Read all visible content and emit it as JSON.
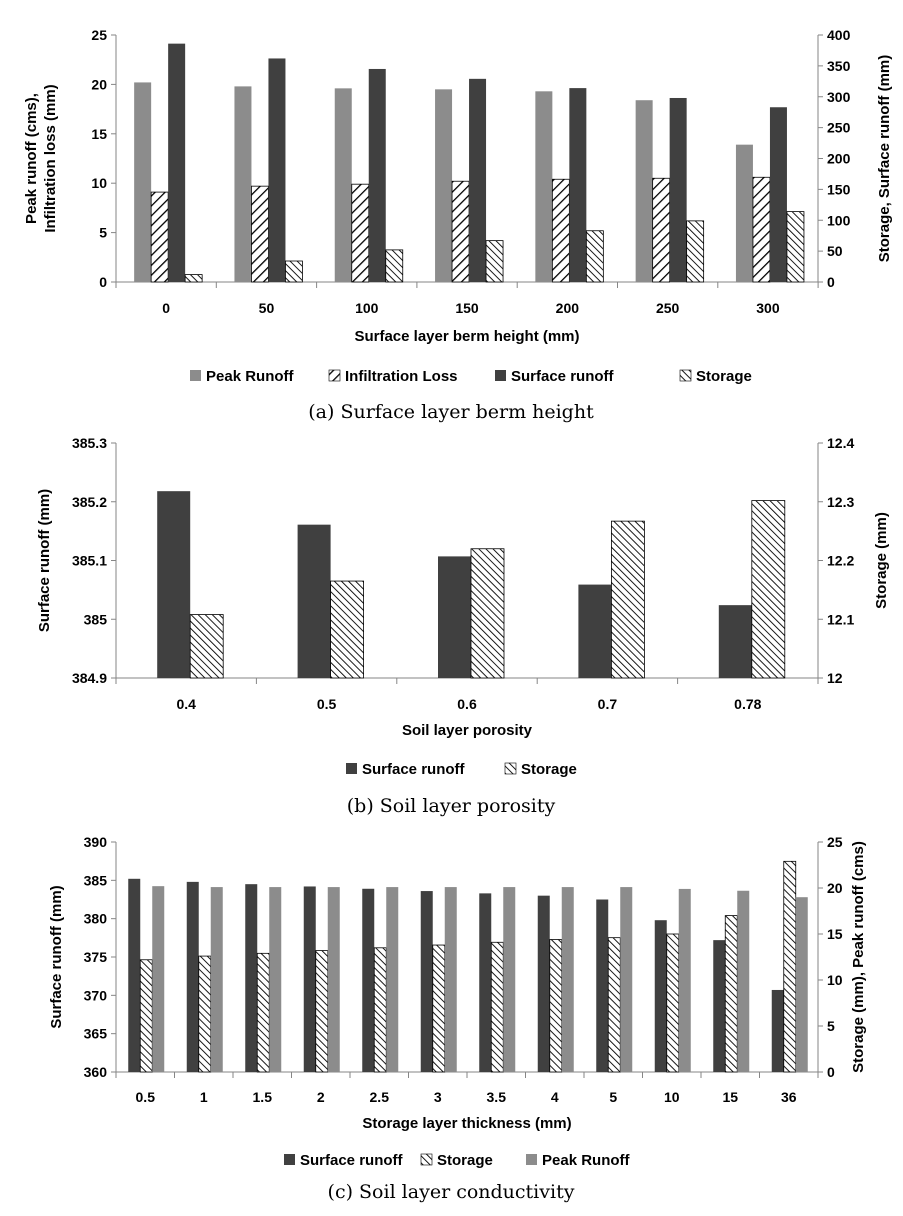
{
  "colors": {
    "peak": "#8c8c8c",
    "surface": "#404040",
    "hatch": "#000000",
    "axis": "#868686"
  },
  "chart_data": [
    {
      "type": "bar",
      "caption": "(a) Surface layer berm height",
      "xlabel": "Surface layer berm height (mm)",
      "ylabel_left": "Peak runoff (cms),\nInfiltration loss (mm)",
      "ylabel_right": "Storage, Surface runoff (mm)",
      "categories": [
        "0",
        "50",
        "100",
        "150",
        "200",
        "250",
        "300"
      ],
      "ylim_left": [
        0,
        25
      ],
      "yticks_left": [
        0,
        5,
        10,
        15,
        20,
        25
      ],
      "ylim_right": [
        0,
        400
      ],
      "yticks_right": [
        0,
        50,
        100,
        150,
        200,
        250,
        300,
        350,
        400
      ],
      "legend_position": "bottom",
      "series": [
        {
          "name": "Peak Runoff",
          "axis": "left",
          "fill": "peak",
          "values": [
            20.2,
            19.8,
            19.6,
            19.5,
            19.3,
            18.4,
            13.9
          ]
        },
        {
          "name": "Infiltration Loss",
          "axis": "left",
          "fill": "hatch-fwd",
          "values": [
            9.1,
            9.7,
            9.9,
            10.2,
            10.4,
            10.5,
            10.6
          ]
        },
        {
          "name": "Surface runoff",
          "axis": "right",
          "fill": "surface",
          "values": [
            386,
            362,
            345,
            329,
            314,
            298,
            283
          ]
        },
        {
          "name": "Storage",
          "axis": "right",
          "fill": "hatch-back",
          "values": [
            12,
            34,
            52,
            67,
            83,
            99,
            114
          ]
        }
      ]
    },
    {
      "type": "bar",
      "caption": "(b) Soil layer porosity",
      "xlabel": "Soil layer porosity",
      "ylabel_left": "Surface runoff (mm)",
      "ylabel_right": "Storage (mm)",
      "categories": [
        "0.4",
        "0.5",
        "0.6",
        "0.7",
        "0.78"
      ],
      "ylim_left": [
        384.9,
        385.3
      ],
      "yticks_left": [
        "384.9",
        "385",
        "385.1",
        "385.2",
        "385.3"
      ],
      "ylim_right": [
        12,
        12.4
      ],
      "yticks_right": [
        "12",
        "12.1",
        "12.2",
        "12.3",
        "12.4"
      ],
      "legend_position": "bottom",
      "series": [
        {
          "name": "Surface runoff",
          "axis": "left",
          "fill": "surface",
          "values": [
            385.218,
            385.161,
            385.107,
            385.059,
            385.024
          ]
        },
        {
          "name": "Storage",
          "axis": "right",
          "fill": "hatch-back",
          "values": [
            12.108,
            12.165,
            12.22,
            12.267,
            12.302
          ]
        }
      ]
    },
    {
      "type": "bar",
      "caption": "(c) Soil layer conductivity",
      "xlabel": "Storage layer thickness (mm)",
      "ylabel_left": "Surface runoff (mm)",
      "ylabel_right": "Storage (mm), Peak runoff (cms)",
      "categories": [
        "0.5",
        "1",
        "1.5",
        "2",
        "2.5",
        "3",
        "3.5",
        "4",
        "5",
        "10",
        "15",
        "36"
      ],
      "ylim_left": [
        360,
        390
      ],
      "yticks_left": [
        360,
        365,
        370,
        375,
        380,
        385,
        390
      ],
      "ylim_right": [
        0,
        25
      ],
      "yticks_right": [
        0,
        5,
        10,
        15,
        20,
        25
      ],
      "legend_position": "bottom",
      "series": [
        {
          "name": "Surface runoff",
          "axis": "left",
          "fill": "surface",
          "values": [
            385.2,
            384.8,
            384.5,
            384.2,
            383.9,
            383.6,
            383.3,
            383.0,
            382.5,
            379.8,
            377.2,
            370.7
          ]
        },
        {
          "name": "Storage",
          "axis": "right",
          "fill": "hatch-back",
          "values": [
            12.2,
            12.6,
            12.9,
            13.2,
            13.5,
            13.8,
            14.1,
            14.4,
            14.6,
            15.0,
            17.0,
            22.9
          ]
        },
        {
          "name": "Peak Runoff",
          "axis": "right",
          "fill": "peak",
          "values": [
            20.2,
            20.1,
            20.1,
            20.1,
            20.1,
            20.1,
            20.1,
            20.1,
            20.1,
            19.9,
            19.7,
            19.0
          ]
        }
      ]
    }
  ]
}
